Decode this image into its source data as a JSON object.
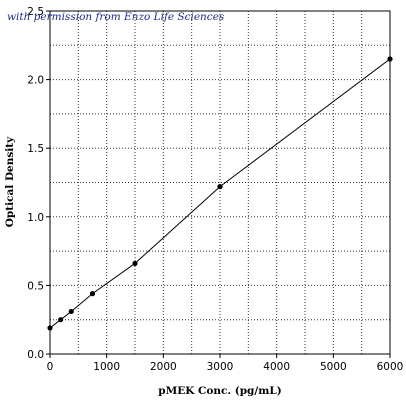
{
  "chart_data": {
    "type": "line",
    "annotation": "with permission from Enzo Life Sciences",
    "xlabel": "pMEK Conc. (pg/mL)",
    "ylabel": "Optical Density",
    "xlim": [
      0,
      6000
    ],
    "ylim": [
      0,
      2.5
    ],
    "grid": true,
    "x_ticks": [
      0,
      1000,
      2000,
      3000,
      4000,
      5000,
      6000
    ],
    "x_tick_labels": [
      "0",
      "1000",
      "2000",
      "3000",
      "4000",
      "5000",
      "6000"
    ],
    "y_ticks": [
      0.0,
      0.5,
      1.0,
      1.5,
      2.0,
      2.5
    ],
    "y_tick_labels": [
      "0.0",
      "0.5",
      "1.0",
      "1.5",
      "2.0",
      "2.5"
    ],
    "series": [
      {
        "x": [
          0,
          188,
          375,
          750,
          1500,
          3000,
          6000
        ],
        "y": [
          0.19,
          0.25,
          0.31,
          0.44,
          0.66,
          1.22,
          2.15
        ]
      }
    ]
  }
}
